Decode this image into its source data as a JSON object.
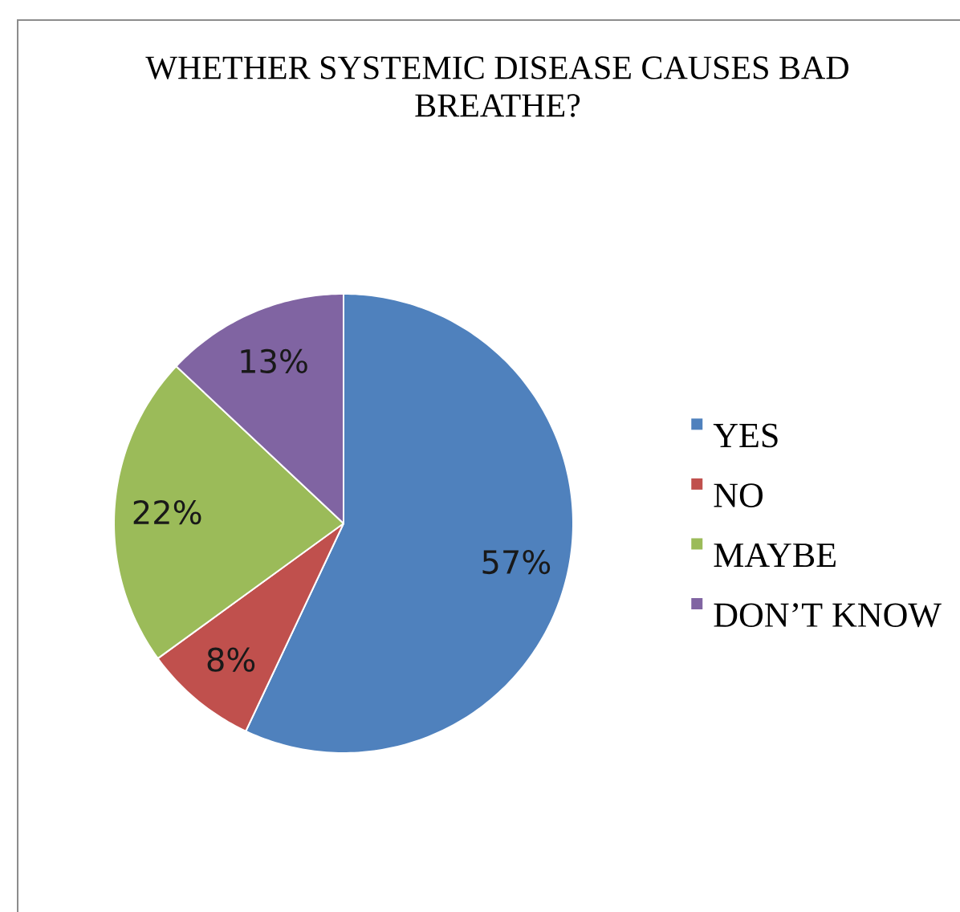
{
  "chart_data": {
    "type": "pie",
    "title": "WHETHER SYSTEMIC DISEASE CAUSES BAD BREATHE?",
    "categories": [
      "YES",
      "NO",
      "MAYBE",
      "DON’T KNOW"
    ],
    "values": [
      57,
      8,
      22,
      13
    ],
    "colors": [
      "#4f81bd",
      "#c0504d",
      "#9bbb59",
      "#8064a2"
    ],
    "value_labels": [
      "57%",
      "8%",
      "22%",
      "13%"
    ],
    "legend": "right"
  }
}
